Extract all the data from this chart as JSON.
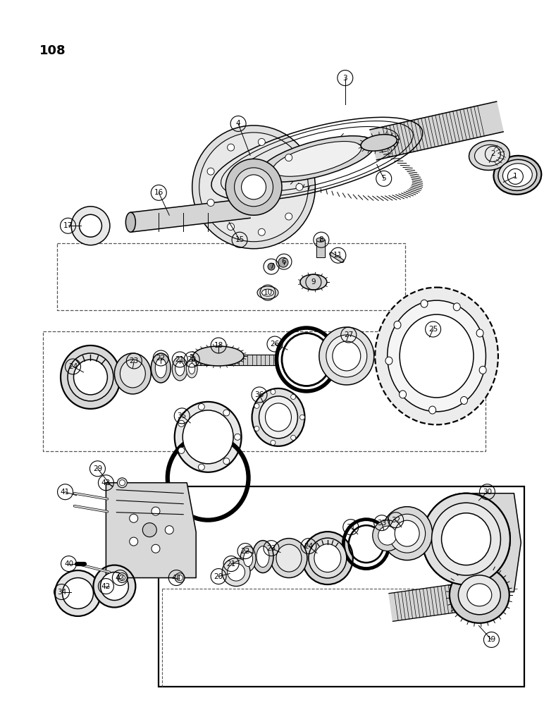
{
  "page_number": "108",
  "bg": "#ffffff",
  "lc": "#000000",
  "figsize": [
    7.72,
    10.0
  ],
  "dpi": 100
}
